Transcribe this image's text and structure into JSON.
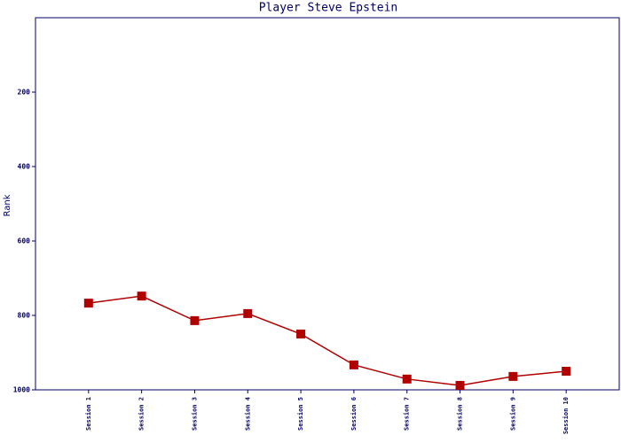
{
  "chart_data": {
    "type": "line",
    "title": "Player Steve Epstein",
    "ylabel": "Rank",
    "categories": [
      "Session 1",
      "Session 2",
      "Session 3",
      "Session 4",
      "Session 5",
      "Session 6",
      "Session 7",
      "Session 8",
      "Session 9",
      "Session 10"
    ],
    "series": [
      {
        "name": "Rank",
        "color": "#b00000",
        "values": [
          767,
          748,
          814,
          795,
          850,
          933,
          971,
          988,
          964,
          950
        ]
      }
    ],
    "ylim": [
      1000,
      0
    ],
    "yticks": [
      200,
      400,
      600,
      800,
      1000
    ],
    "grid": false
  }
}
